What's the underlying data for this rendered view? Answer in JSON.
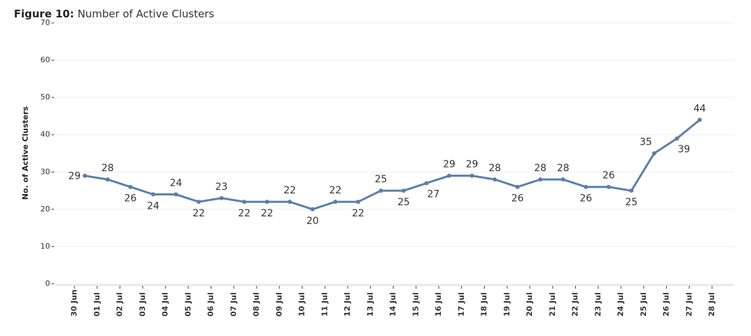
{
  "chart_data": {
    "type": "line",
    "title_prefix": "Figure 10:",
    "title": "Number of Active Clusters",
    "ylabel": "No. of Active Clusters",
    "categories": [
      "30 Jun",
      "01 Jul",
      "02 Jul",
      "03 Jul",
      "04 Jul",
      "05 Jul",
      "06 Jul",
      "07 Jul",
      "08 Jul",
      "09 Jul",
      "10 Jul",
      "11 Jul",
      "12 Jul",
      "13 Jul",
      "14 Jul",
      "15 Jul",
      "16 Jul",
      "17 Jul",
      "18 Jul",
      "19 Jul",
      "20 Jul",
      "21 Jul",
      "22 Jul",
      "23 Jul",
      "24 Jul",
      "25 Jul",
      "26 Jul",
      "27 Jul",
      "28 Jul"
    ],
    "series": [
      {
        "name": "Active Clusters",
        "color": "#5b7faa",
        "values": [
          29,
          28,
          26,
          24,
          24,
          22,
          23,
          22,
          22,
          22,
          20,
          22,
          22,
          25,
          25,
          27,
          29,
          29,
          28,
          26,
          28,
          28,
          26,
          26,
          25,
          35,
          39,
          44,
          null
        ]
      }
    ],
    "ylim": [
      0,
      70
    ],
    "yticks": [
      0,
      10,
      20,
      30,
      40,
      50,
      60,
      70
    ],
    "grid": true
  }
}
